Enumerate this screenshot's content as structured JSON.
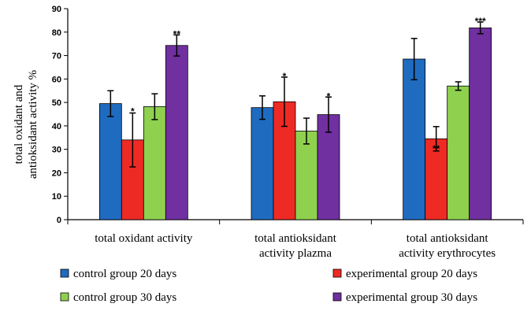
{
  "chart_data": {
    "type": "bar",
    "title": "",
    "xlabel": "",
    "ylabel_lines": [
      "total oxidant and",
      "antioksidant activity %"
    ],
    "ylim": [
      0,
      90
    ],
    "yticks": [
      0,
      10,
      20,
      30,
      40,
      50,
      60,
      70,
      80,
      90
    ],
    "grid": false,
    "legend_position": "bottom",
    "categories": [
      [
        "total oxidant activity"
      ],
      [
        "total antioksidant",
        "activity plazma"
      ],
      [
        "total  antioksidant",
        "activity erythrocytes"
      ]
    ],
    "series": [
      {
        "name": "control group 20 days",
        "color": "#1f6bbf",
        "values": [
          49.5,
          47.8,
          68.5
        ],
        "errors": [
          5.5,
          5.0,
          8.8
        ],
        "sig": [
          "",
          "",
          ""
        ]
      },
      {
        "name": "experimental group 20 days",
        "color": "#ee2a24",
        "values": [
          34,
          50.3,
          34.5
        ],
        "errors": [
          11.5,
          10.5,
          5.2
        ],
        "sig": [
          "*",
          "*",
          "**"
        ]
      },
      {
        "name": "control group 30 days",
        "color": "#8fd14f",
        "values": [
          48.2,
          37.8,
          57
        ],
        "errors": [
          5.5,
          5.5,
          1.8
        ],
        "sig": [
          "",
          "",
          ""
        ]
      },
      {
        "name": "experimental group 30 days",
        "color": "#7030a0",
        "values": [
          74.3,
          44.8,
          81.8
        ],
        "errors": [
          4.5,
          7.5,
          2.5
        ],
        "sig": [
          "**",
          "*",
          "***"
        ]
      }
    ]
  }
}
